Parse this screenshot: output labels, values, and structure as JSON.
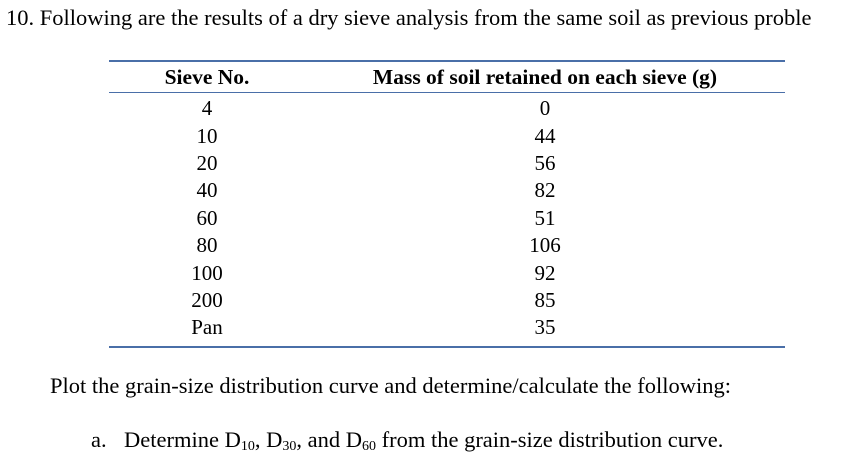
{
  "problem": {
    "text": "10. Following are the results of a dry sieve analysis from the same soil as previous proble"
  },
  "table": {
    "headers": {
      "sieve": "Sieve No.",
      "mass": "Mass of soil retained on each sieve (g)"
    },
    "rows": [
      {
        "sieve": "4",
        "mass": "0"
      },
      {
        "sieve": "10",
        "mass": "44"
      },
      {
        "sieve": "20",
        "mass": "56"
      },
      {
        "sieve": "40",
        "mass": "82"
      },
      {
        "sieve": "60",
        "mass": "51"
      },
      {
        "sieve": "80",
        "mass": "106"
      },
      {
        "sieve": "100",
        "mass": "92"
      },
      {
        "sieve": "200",
        "mass": "85"
      },
      {
        "sieve": "Pan",
        "mass": "35"
      }
    ],
    "rule_color": "#4a6fa8"
  },
  "instructions": {
    "text": "Plot the grain-size distribution curve and determine/calculate the following:"
  },
  "item_a": {
    "letter": "a.",
    "part1": "Determine D",
    "sub1": "10",
    "part2": ", D",
    "sub2": "30",
    "part3": ", and D",
    "sub3": "60",
    "part4": " from the grain-size distribution curve."
  }
}
